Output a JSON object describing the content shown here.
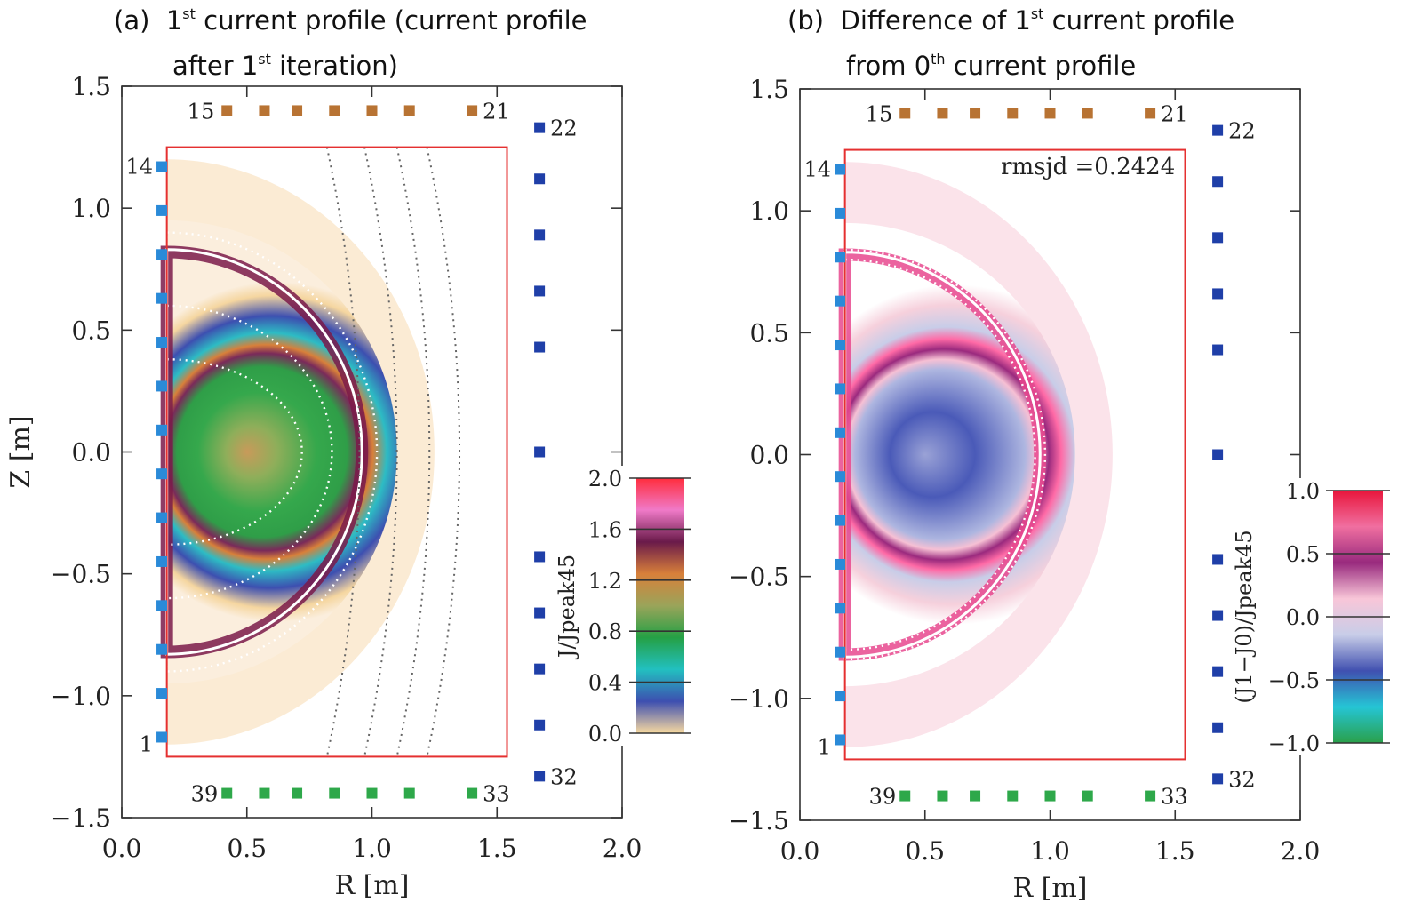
{
  "panels": [
    {
      "id": "a",
      "title": {
        "tag": "(a)",
        "line1_pre": "1",
        "line1_sup": "st",
        "line1_post": " current profile (current profile",
        "line2_pre": "after 1",
        "line2_sup": "st",
        "line2_post": " iteration)"
      },
      "colorbar": {
        "label": "J/Jpeak45",
        "ticks": [
          "2.0",
          "1.6",
          "1.2",
          "0.8",
          "0.4",
          "0.0"
        ],
        "range": [
          0.0,
          2.0
        ],
        "colors": [
          "#ff2d3c",
          "#f07ac8",
          "#6a1a4a",
          "#d8803a",
          "#9aa45a",
          "#25a045",
          "#22c0c0",
          "#3d4fb0",
          "#f7d9a0"
        ]
      },
      "annotation": ""
    },
    {
      "id": "b",
      "title": {
        "tag": "(b)",
        "line1_pre": "Difference of  1",
        "line1_sup": "st",
        "line1_post": " current profile",
        "line2_pre": "from 0",
        "line2_sup": "th",
        "line2_post": " current profile"
      },
      "colorbar": {
        "label": "(J1−J0)/Jpeak45",
        "ticks": [
          "1.0",
          "0.5",
          "0.0",
          "−0.5",
          "−1.0"
        ],
        "range": [
          -1.0,
          1.0
        ],
        "colors": [
          "#e8163c",
          "#f06fa0",
          "#992a7e",
          "#f8c6d8",
          "#c8cde8",
          "#4050b0",
          "#25c5d5",
          "#2aa04a"
        ]
      },
      "annotation": "rmsjd =0.2424"
    }
  ],
  "axes": {
    "xlabel": "R [m]",
    "ylabel": "Z [m]",
    "x_ticks": [
      "0.0",
      "0.5",
      "1.0",
      "1.5",
      "2.0"
    ],
    "y_ticks": [
      "1.5",
      "1.0",
      "0.5",
      "0.0",
      "−0.5",
      "−1.0",
      "−1.5"
    ]
  },
  "coils": {
    "labels": [
      "15",
      "21",
      "22",
      "14",
      "1",
      "39",
      "33",
      "32"
    ],
    "colors": {
      "top": "#b87333",
      "bottom": "#2ea84a",
      "side": "#1f3fa8",
      "inner": "#2a8ad8"
    }
  },
  "chart_data": [
    {
      "type": "heatmap",
      "title": "(a) 1st current profile (current profile after 1st iteration)",
      "xlabel": "R [m]",
      "ylabel": "Z [m]",
      "xlim": [
        0.0,
        2.0
      ],
      "ylim": [
        -1.5,
        1.5
      ],
      "colorbar_label": "J/Jpeak45",
      "colorbar_range": [
        0.0,
        2.0
      ],
      "grid_region": {
        "R": [
          0.18,
          1.54
        ],
        "Z": [
          -1.25,
          1.25
        ]
      },
      "coils": {
        "top": {
          "first": 15,
          "last": 21,
          "Z": 1.4,
          "R": [
            0.42,
            0.57,
            0.7,
            0.85,
            1.0,
            1.15,
            1.4
          ]
        },
        "bottom": {
          "first": 39,
          "last": 33,
          "Z": -1.4,
          "R": [
            0.42,
            0.57,
            0.7,
            0.85,
            1.0,
            1.15,
            1.4
          ]
        },
        "outer": {
          "first": 22,
          "last": 32,
          "R": 1.67,
          "Z": [
            1.33,
            1.12,
            0.89,
            0.66,
            0.43,
            0.0,
            -0.43,
            -0.66,
            -0.89,
            -1.12,
            -1.33
          ]
        },
        "inner": {
          "first": 14,
          "last": 1,
          "R": 0.16,
          "Z": [
            1.17,
            0.99,
            0.81,
            0.63,
            0.45,
            0.27,
            0.09,
            -0.09,
            -0.27,
            -0.45,
            -0.63,
            -0.81,
            -0.99,
            -1.17
          ]
        }
      }
    },
    {
      "type": "heatmap",
      "title": "(b) Difference of 1st current profile from 0th current profile",
      "xlabel": "R [m]",
      "ylabel": "Z [m]",
      "xlim": [
        0.0,
        2.0
      ],
      "ylim": [
        -1.5,
        1.5
      ],
      "colorbar_label": "(J1−J0)/Jpeak45",
      "colorbar_range": [
        -1.0,
        1.0
      ],
      "annotation": "rmsjd =0.2424",
      "grid_region": {
        "R": [
          0.18,
          1.54
        ],
        "Z": [
          -1.25,
          1.25
        ]
      }
    }
  ]
}
